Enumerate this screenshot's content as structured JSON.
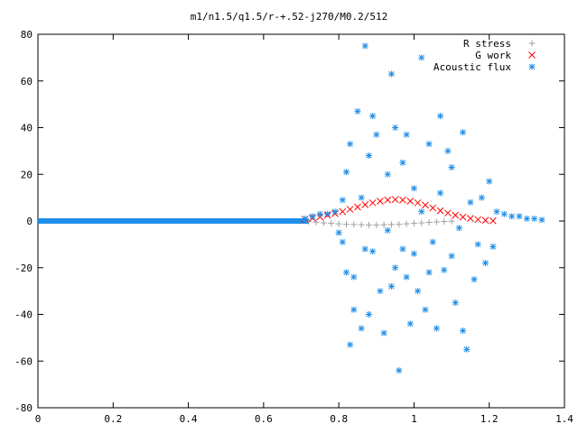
{
  "chart_data": {
    "type": "scatter",
    "title": "m1/n1.5/q1.5/r-+.52-j270/M0.2/512",
    "xlabel": "",
    "ylabel": "",
    "xlim": [
      0,
      1.4
    ],
    "ylim": [
      -80,
      80
    ],
    "x_ticks": [
      "0",
      "0.2",
      "0.4",
      "0.6",
      "0.8",
      "1",
      "1.2",
      "1.4"
    ],
    "y_ticks": [
      "80",
      "60",
      "40",
      "20",
      "0",
      "-20",
      "-40",
      "-60",
      "-80"
    ],
    "grid": false,
    "legend_position": "top-right",
    "series": [
      {
        "name": "R stress",
        "marker": "plus",
        "color": "#a0a0a0",
        "points": [
          [
            0.72,
            -0.3
          ],
          [
            0.74,
            -0.5
          ],
          [
            0.76,
            -0.8
          ],
          [
            0.78,
            -1.0
          ],
          [
            0.8,
            -1.2
          ],
          [
            0.82,
            -1.4
          ],
          [
            0.84,
            -1.5
          ],
          [
            0.86,
            -1.6
          ],
          [
            0.88,
            -1.7
          ],
          [
            0.9,
            -1.7
          ],
          [
            0.92,
            -1.6
          ],
          [
            0.94,
            -1.5
          ],
          [
            0.96,
            -1.4
          ],
          [
            0.98,
            -1.2
          ],
          [
            1.0,
            -1.0
          ],
          [
            1.02,
            -0.8
          ],
          [
            1.04,
            -0.6
          ],
          [
            1.06,
            -0.4
          ],
          [
            1.08,
            -0.2
          ],
          [
            1.1,
            -0.1
          ]
        ]
      },
      {
        "name": "G work",
        "marker": "cross",
        "color": "#ff0000",
        "points": [
          [
            0.71,
            0.8
          ],
          [
            0.73,
            1.2
          ],
          [
            0.75,
            1.8
          ],
          [
            0.77,
            2.5
          ],
          [
            0.79,
            3.2
          ],
          [
            0.81,
            4.0
          ],
          [
            0.83,
            5.0
          ],
          [
            0.85,
            6.0
          ],
          [
            0.87,
            7.0
          ],
          [
            0.89,
            7.8
          ],
          [
            0.91,
            8.5
          ],
          [
            0.93,
            9.0
          ],
          [
            0.95,
            9.2
          ],
          [
            0.97,
            9.0
          ],
          [
            0.99,
            8.5
          ],
          [
            1.01,
            7.8
          ],
          [
            1.03,
            6.8
          ],
          [
            1.05,
            5.6
          ],
          [
            1.07,
            4.4
          ],
          [
            1.09,
            3.4
          ],
          [
            1.11,
            2.5
          ],
          [
            1.13,
            1.7
          ],
          [
            1.15,
            1.1
          ],
          [
            1.17,
            0.6
          ],
          [
            1.19,
            0.3
          ],
          [
            1.21,
            0.1
          ]
        ]
      },
      {
        "name": "Acoustic flux",
        "marker": "star",
        "color": "#1f8ee8",
        "points": [
          [
            0.71,
            1
          ],
          [
            0.73,
            2
          ],
          [
            0.75,
            3
          ],
          [
            0.77,
            3
          ],
          [
            0.79,
            4
          ],
          [
            0.81,
            9
          ],
          [
            0.81,
            -9
          ],
          [
            0.8,
            -5
          ],
          [
            0.82,
            21
          ],
          [
            0.82,
            -22
          ],
          [
            0.83,
            33
          ],
          [
            0.83,
            -53
          ],
          [
            0.84,
            -24
          ],
          [
            0.84,
            -38
          ],
          [
            0.85,
            47
          ],
          [
            0.86,
            -46
          ],
          [
            0.86,
            10
          ],
          [
            0.87,
            75
          ],
          [
            0.87,
            -12
          ],
          [
            0.88,
            28
          ],
          [
            0.88,
            -40
          ],
          [
            0.89,
            -13
          ],
          [
            0.89,
            45
          ],
          [
            0.9,
            37
          ],
          [
            0.91,
            -30
          ],
          [
            0.92,
            -48
          ],
          [
            0.93,
            20
          ],
          [
            0.93,
            -4
          ],
          [
            0.94,
            63
          ],
          [
            0.94,
            -28
          ],
          [
            0.95,
            40
          ],
          [
            0.95,
            -20
          ],
          [
            0.96,
            -64
          ],
          [
            0.97,
            25
          ],
          [
            0.97,
            -12
          ],
          [
            0.98,
            37
          ],
          [
            0.98,
            -24
          ],
          [
            0.99,
            -44
          ],
          [
            1.0,
            -14
          ],
          [
            1.0,
            14
          ],
          [
            1.01,
            -30
          ],
          [
            1.02,
            70
          ],
          [
            1.02,
            4
          ],
          [
            1.03,
            -38
          ],
          [
            1.04,
            33
          ],
          [
            1.04,
            -22
          ],
          [
            1.05,
            -9
          ],
          [
            1.06,
            -46
          ],
          [
            1.07,
            45
          ],
          [
            1.07,
            12
          ],
          [
            1.08,
            -21
          ],
          [
            1.09,
            30
          ],
          [
            1.1,
            -15
          ],
          [
            1.1,
            23
          ],
          [
            1.11,
            -35
          ],
          [
            1.12,
            -3
          ],
          [
            1.13,
            -47
          ],
          [
            1.13,
            38
          ],
          [
            1.14,
            -55
          ],
          [
            1.15,
            8
          ],
          [
            1.16,
            -25
          ],
          [
            1.17,
            -10
          ],
          [
            1.18,
            10
          ],
          [
            1.19,
            -18
          ],
          [
            1.2,
            17
          ],
          [
            1.21,
            -11
          ],
          [
            1.22,
            4
          ],
          [
            1.24,
            3
          ],
          [
            1.26,
            2
          ],
          [
            1.28,
            2
          ],
          [
            1.3,
            1
          ],
          [
            1.32,
            1
          ],
          [
            1.34,
            0.5
          ]
        ]
      }
    ]
  }
}
